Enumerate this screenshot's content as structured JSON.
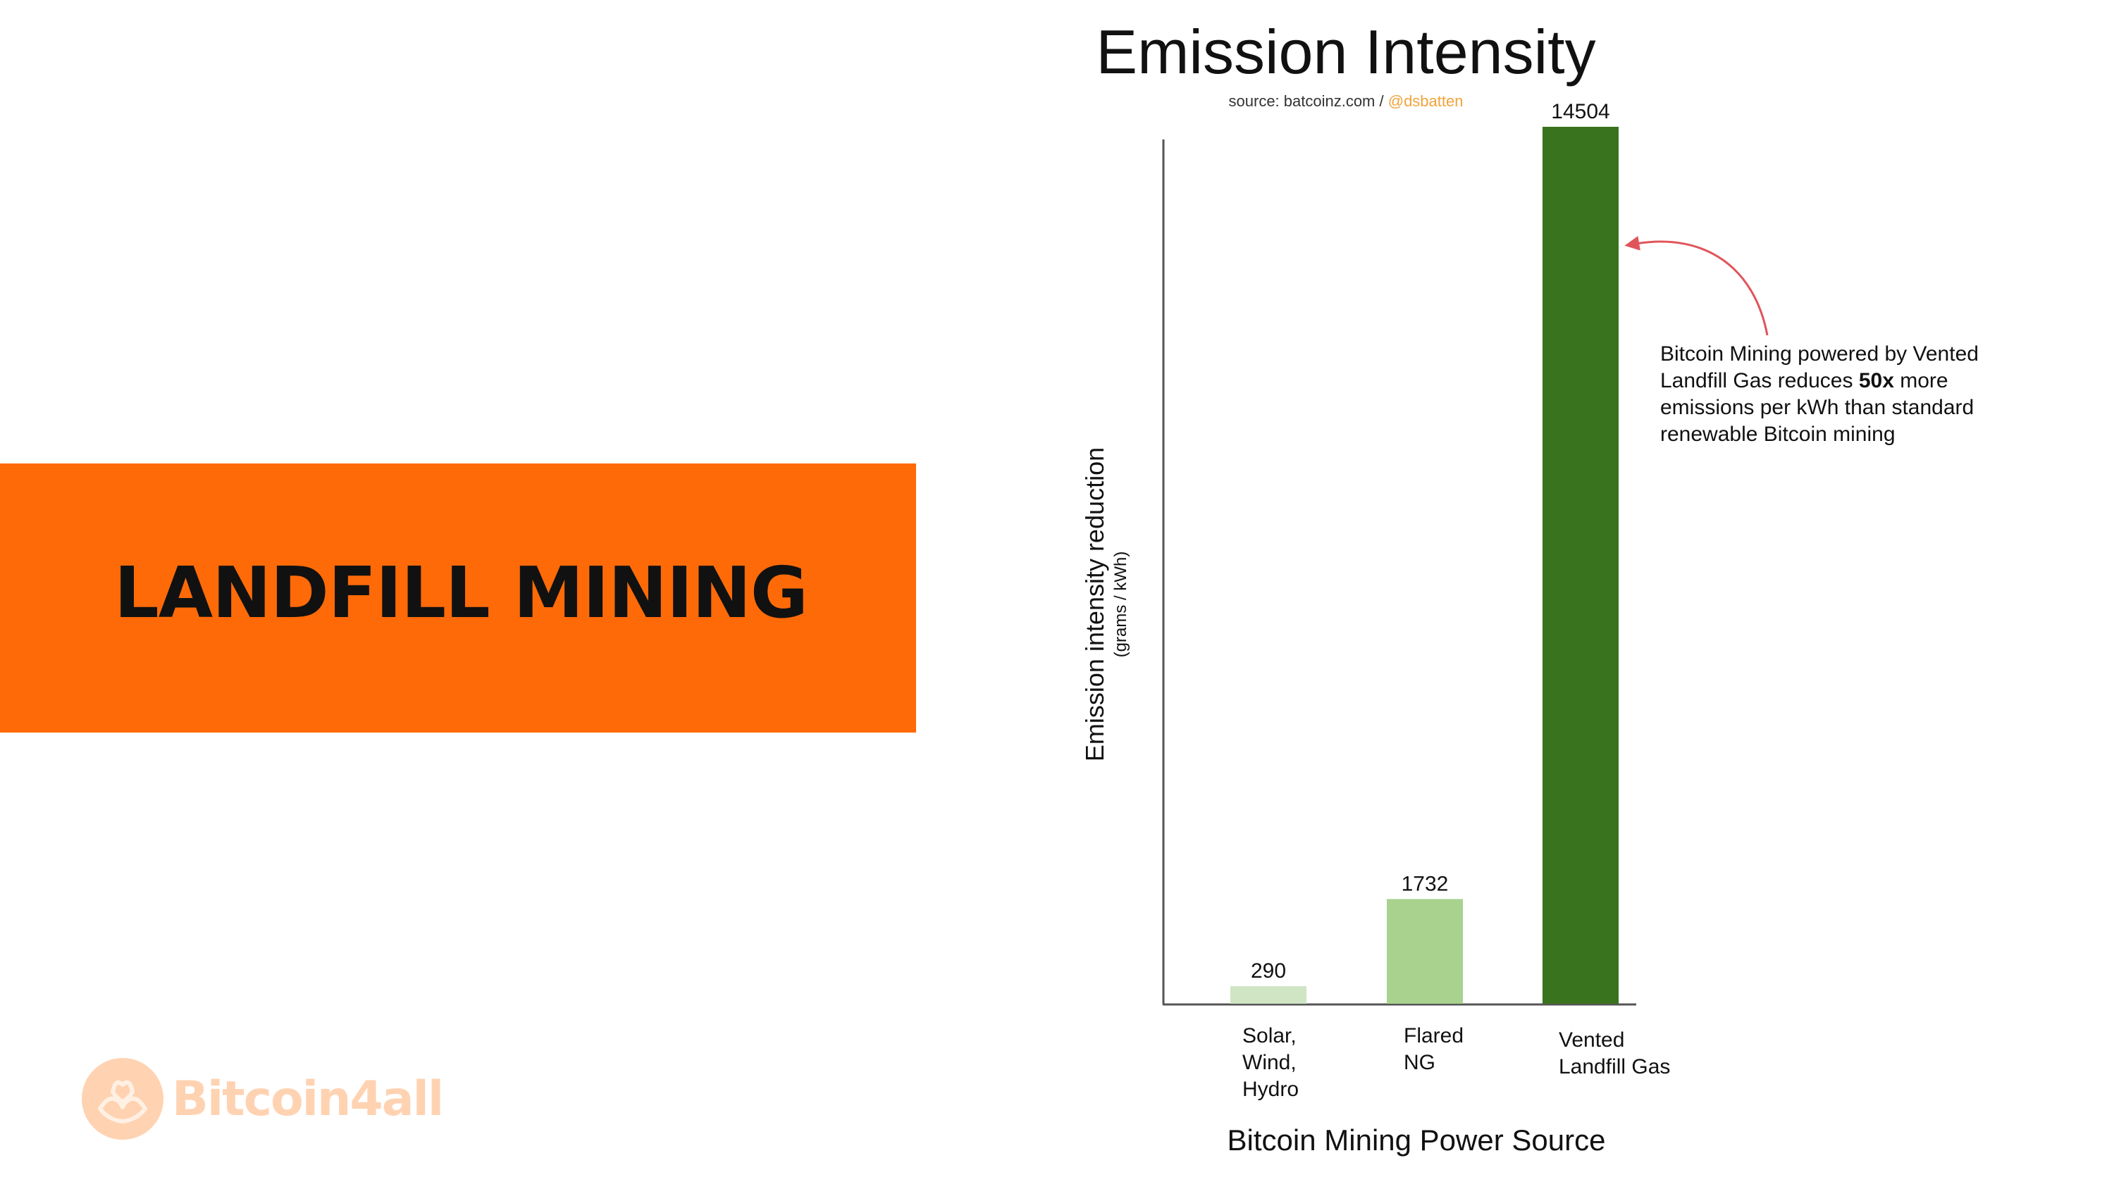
{
  "banner": {
    "title": "LANDFILL MINING",
    "color": "#ff6a08"
  },
  "logo": {
    "text": "Bitcoin4all",
    "icon": "hands-heart-icon",
    "color": "#ffd2b1"
  },
  "chart_data": {
    "type": "bar",
    "title": "Emission Intensity",
    "source_prefix": "source: batcoinz.com / ",
    "source_handle": "@dsbatten",
    "ylabel": "Emission intensity reduction",
    "ylabel_unit": "(grams / kWh)",
    "xlabel": "Bitcoin Mining Power Source",
    "ylim": [
      0,
      14504
    ],
    "grid": false,
    "categories": [
      [
        "Solar,",
        "Wind,",
        "Hydro"
      ],
      [
        "Flared",
        "NG"
      ],
      [
        "Vented",
        "Landfill Gas"
      ]
    ],
    "values": [
      290,
      1732,
      14504
    ],
    "data_labels": [
      "290",
      "1732",
      "14504"
    ],
    "bar_colors": [
      "#cfe5c4",
      "#a8d28e",
      "#3a731e"
    ],
    "annotation": {
      "text_before": "Bitcoin Mining powered by Vented Landfill Gas reduces ",
      "emphasis": "50x",
      "text_after": " more emissions per kWh than standard renewable Bitcoin mining",
      "arrow_color": "#e0555a"
    }
  }
}
